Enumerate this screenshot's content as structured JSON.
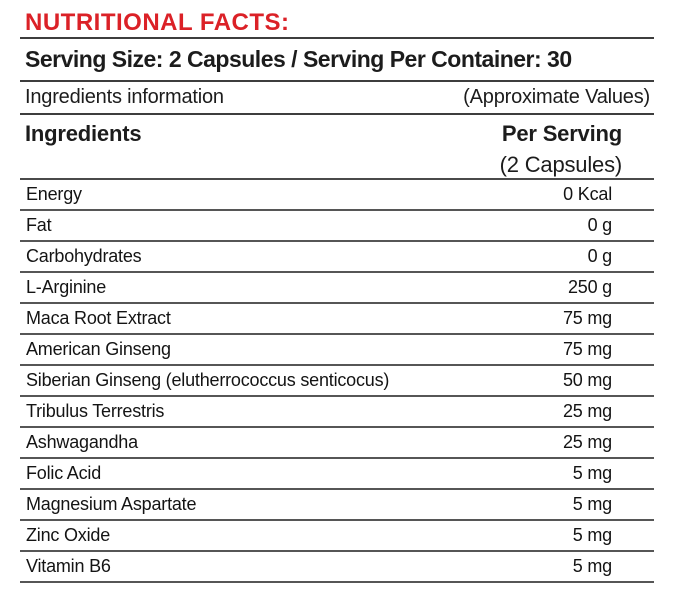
{
  "header": {
    "title": "NUTRITIONAL FACTS:",
    "serving_line": "Serving Size: 2 Capsules / Serving Per Container: 30",
    "info_left": "Ingredients information",
    "info_right": "(Approximate Values)"
  },
  "table": {
    "col_ingredients": "Ingredients",
    "col_per_serving": "Per Serving",
    "col_per_serving_sub": "(2 Capsules)",
    "rows": [
      {
        "name": "Energy",
        "value": "0 Kcal"
      },
      {
        "name": "Fat",
        "value": "0 g"
      },
      {
        "name": "Carbohydrates",
        "value": "0 g"
      },
      {
        "name": "L-Arginine",
        "value": "250 g"
      },
      {
        "name": "Maca Root Extract",
        "value": "75 mg"
      },
      {
        "name": "American Ginseng",
        "value": "75 mg"
      },
      {
        "name": "Siberian Ginseng (elutherrococcus senticocus)",
        "value": "50 mg"
      },
      {
        "name": "Tribulus Terrestris",
        "value": "25 mg"
      },
      {
        "name": "Ashwagandha",
        "value": "25 mg"
      },
      {
        "name": "Folic Acid",
        "value": "5 mg"
      },
      {
        "name": "Magnesium Aspartate",
        "value": "5 mg"
      },
      {
        "name": "Zinc Oxide",
        "value": "5 mg"
      },
      {
        "name": "Vitamin B6",
        "value": "5 mg"
      }
    ]
  },
  "colors": {
    "accent_red": "#db2127",
    "text": "#1c1c1c",
    "rule": "#565656"
  }
}
